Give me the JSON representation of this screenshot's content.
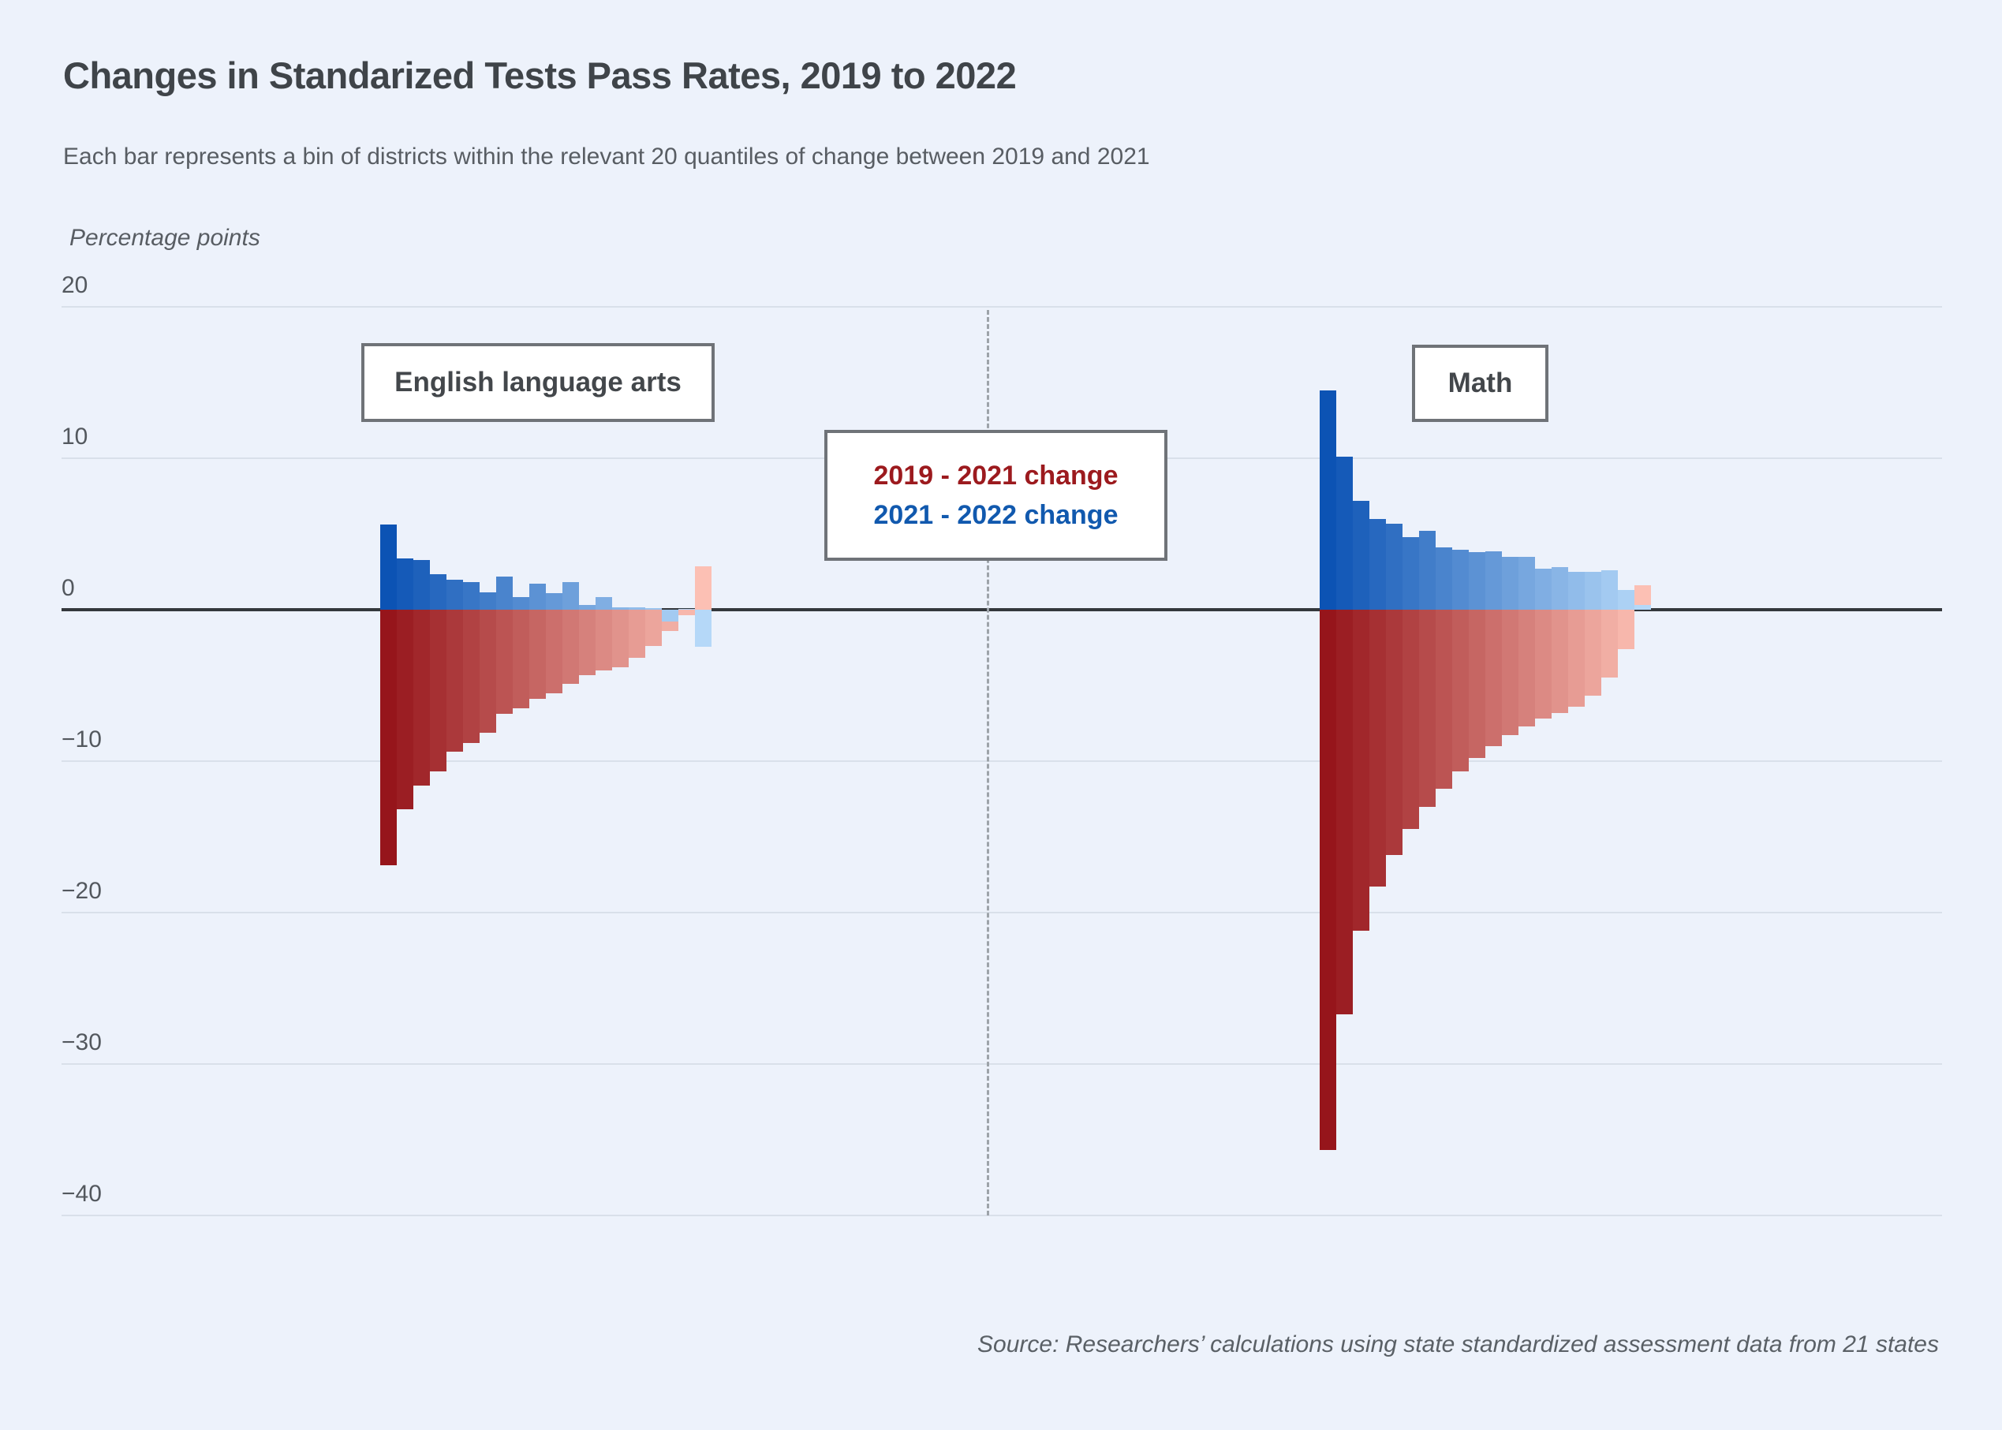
{
  "page": {
    "background": "#edf2fb"
  },
  "chart_data": {
    "type": "bar",
    "title": "Changes in Standarized Tests Pass Rates, 2019 to 2022",
    "subtitle": "Each bar represents a bin of districts within the relevant 20 quantiles of change between 2019 and 2021",
    "unit_label": "Percentage points",
    "source": "Source: Researchers’ calculations using state standardized assessment data from 21 states",
    "ylim": [
      -40,
      20
    ],
    "grid": true,
    "yticks": [
      {
        "value": 20,
        "label": "20"
      },
      {
        "value": 10,
        "label": "10"
      },
      {
        "value": 0,
        "label": "0"
      },
      {
        "value": -10,
        "label": "−10"
      },
      {
        "value": -20,
        "label": "−20"
      },
      {
        "value": -30,
        "label": "−30"
      },
      {
        "value": -40,
        "label": "−40"
      }
    ],
    "legend_position": "center",
    "legend": [
      {
        "label": "2019 - 2021 change",
        "color": "#9c1a1e"
      },
      {
        "label": "2021 - 2022 change",
        "color": "#1159ae"
      }
    ],
    "series_colors": {
      "red_dark": "#96151b",
      "red_light": "#fcc0b4",
      "blue_dark": "#0c53b4",
      "blue_light": "#b5d8f8"
    },
    "bins_per_group": 20,
    "groups": [
      {
        "label": "English language arts",
        "series": [
          {
            "name": "2019 - 2021 change",
            "values": [
              -16.9,
              -13.2,
              -11.6,
              -10.7,
              -9.4,
              -8.8,
              -8.1,
              -6.9,
              -6.5,
              -5.9,
              -5.5,
              -4.9,
              -4.3,
              -4.0,
              -3.8,
              -3.2,
              -2.4,
              -1.4,
              -0.35,
              2.85
            ]
          },
          {
            "name": "2021 - 2022 change",
            "values": [
              5.6,
              3.4,
              3.3,
              2.35,
              2.0,
              1.8,
              1.15,
              2.2,
              0.85,
              1.7,
              1.1,
              1.8,
              0.3,
              0.85,
              0.15,
              0.15,
              0.1,
              -0.8,
              0.05,
              -2.45
            ]
          }
        ]
      },
      {
        "label": "Math",
        "series": [
          {
            "name": "2019 - 2021 change",
            "values": [
              -35.7,
              -26.7,
              -21.2,
              -18.3,
              -16.2,
              -14.5,
              -13.0,
              -11.8,
              -10.7,
              -9.8,
              -9.0,
              -8.3,
              -7.7,
              -7.2,
              -6.8,
              -6.4,
              -5.7,
              -4.5,
              -2.6,
              1.6
            ]
          },
          {
            "name": "2021 - 2022 change",
            "values": [
              14.5,
              10.1,
              7.2,
              6.0,
              5.7,
              4.8,
              5.2,
              4.1,
              3.95,
              3.8,
              3.85,
              3.5,
              3.5,
              2.7,
              2.8,
              2.5,
              2.5,
              2.6,
              1.3,
              0.3
            ]
          }
        ]
      }
    ]
  }
}
